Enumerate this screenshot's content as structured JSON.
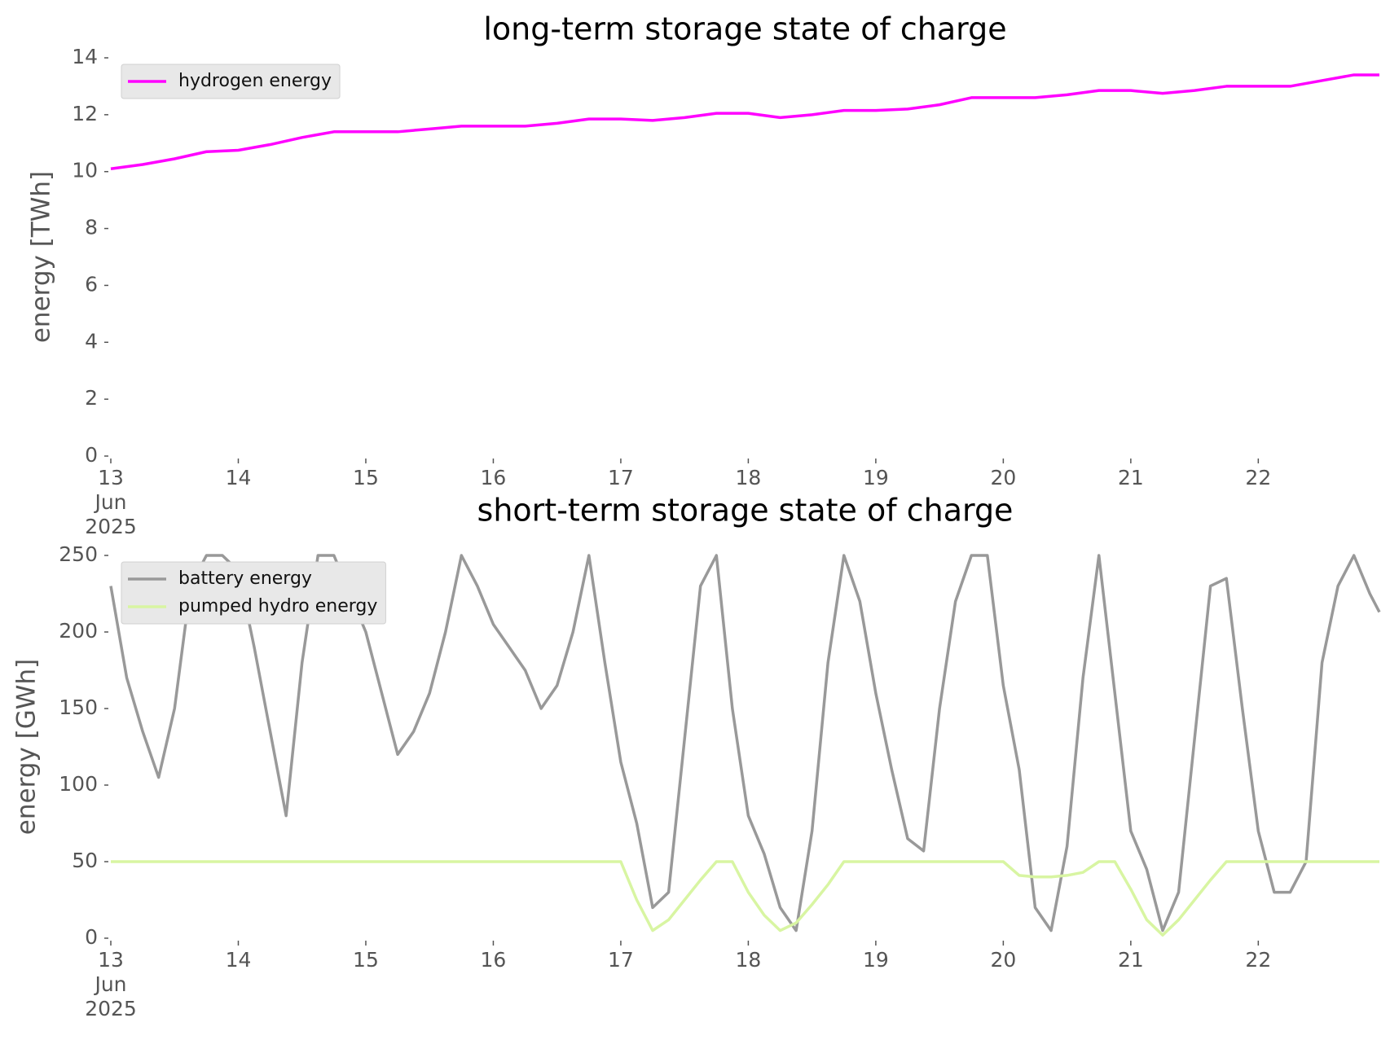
{
  "chart_data": [
    {
      "type": "line",
      "title": "long-term storage state of charge",
      "y_label": "energy [TWh]",
      "x": [
        13,
        13.25,
        13.5,
        13.75,
        14,
        14.25,
        14.5,
        14.75,
        15,
        15.25,
        15.5,
        15.75,
        16,
        16.25,
        16.5,
        16.75,
        17,
        17.25,
        17.5,
        17.75,
        18,
        18.25,
        18.5,
        18.75,
        19,
        19.25,
        19.5,
        19.75,
        20,
        20.25,
        20.5,
        20.75,
        21,
        21.25,
        21.5,
        21.75,
        22,
        22.25,
        22.5,
        22.75,
        22.95
      ],
      "series": [
        {
          "name": "hydrogen energy",
          "color": "#ff00ff",
          "values": [
            10.1,
            10.25,
            10.45,
            10.7,
            10.75,
            10.95,
            11.2,
            11.4,
            11.4,
            11.4,
            11.5,
            11.6,
            11.6,
            11.6,
            11.7,
            11.85,
            11.85,
            11.8,
            11.9,
            12.05,
            12.05,
            11.9,
            12.0,
            12.15,
            12.15,
            12.2,
            12.35,
            12.6,
            12.6,
            12.6,
            12.7,
            12.85,
            12.85,
            12.75,
            12.85,
            13.0,
            13.0,
            13.0,
            13.2,
            13.4,
            13.4
          ]
        }
      ],
      "xlim": [
        13,
        22.95
      ],
      "xticks": [
        {
          "value": 13,
          "label": "13\nJun\n2025"
        },
        14,
        15,
        16,
        17,
        18,
        19,
        20,
        21,
        22
      ],
      "ylim": [
        0,
        14
      ],
      "yticks": [
        0,
        2,
        4,
        6,
        8,
        10,
        12,
        14
      ],
      "legend": "upper left",
      "grid": false
    },
    {
      "type": "line",
      "title": "short-term storage state of charge",
      "y_label": "energy [GWh]",
      "x": [
        13,
        13.125,
        13.25,
        13.375,
        13.5,
        13.625,
        13.75,
        13.875,
        14,
        14.125,
        14.25,
        14.375,
        14.5,
        14.625,
        14.75,
        14.875,
        15,
        15.125,
        15.25,
        15.375,
        15.5,
        15.625,
        15.75,
        15.875,
        16,
        16.125,
        16.25,
        16.375,
        16.5,
        16.625,
        16.75,
        16.875,
        17,
        17.125,
        17.25,
        17.375,
        17.5,
        17.625,
        17.75,
        17.875,
        18,
        18.125,
        18.25,
        18.375,
        18.5,
        18.625,
        18.75,
        18.875,
        19,
        19.125,
        19.25,
        19.375,
        19.5,
        19.625,
        19.75,
        19.875,
        20,
        20.125,
        20.25,
        20.375,
        20.5,
        20.625,
        20.75,
        20.875,
        21,
        21.125,
        21.25,
        21.375,
        21.5,
        21.625,
        21.75,
        21.875,
        22,
        22.125,
        22.25,
        22.375,
        22.5,
        22.625,
        22.75,
        22.875,
        22.95
      ],
      "series": [
        {
          "name": "battery energy",
          "color": "#999999",
          "values": [
            230,
            170,
            135,
            105,
            150,
            230,
            250,
            250,
            240,
            190,
            135,
            80,
            180,
            250,
            250,
            225,
            200,
            160,
            120,
            135,
            160,
            200,
            250,
            230,
            205,
            190,
            175,
            150,
            165,
            200,
            250,
            180,
            115,
            75,
            20,
            30,
            130,
            230,
            250,
            150,
            80,
            55,
            20,
            5,
            70,
            180,
            250,
            220,
            160,
            110,
            65,
            57,
            150,
            220,
            250,
            250,
            165,
            110,
            20,
            5,
            60,
            170,
            250,
            160,
            70,
            45,
            5,
            30,
            130,
            230,
            235,
            150,
            70,
            30,
            30,
            50,
            180,
            230,
            250,
            225,
            213
          ]
        },
        {
          "name": "pumped hydro energy",
          "color": "#d8f5a2",
          "values": [
            50,
            50,
            50,
            50,
            50,
            50,
            50,
            50,
            50,
            50,
            50,
            50,
            50,
            50,
            50,
            50,
            50,
            50,
            50,
            50,
            50,
            50,
            50,
            50,
            50,
            50,
            50,
            50,
            50,
            50,
            50,
            50,
            50,
            25,
            5,
            12,
            25,
            38,
            50,
            50,
            30,
            15,
            5,
            10,
            22,
            35,
            50,
            50,
            50,
            50,
            50,
            50,
            50,
            50,
            50,
            50,
            50,
            41,
            40,
            40,
            41,
            43,
            50,
            50,
            32,
            12,
            2,
            12,
            25,
            38,
            50,
            50,
            50,
            50,
            50,
            50,
            50,
            50,
            50,
            50,
            50
          ]
        }
      ],
      "xlim": [
        13,
        22.95
      ],
      "xticks": [
        {
          "value": 13,
          "label": "13\nJun\n2025"
        },
        14,
        15,
        16,
        17,
        18,
        19,
        20,
        21,
        22
      ],
      "ylim": [
        0,
        250
      ],
      "yticks": [
        0,
        50,
        100,
        150,
        200,
        250
      ],
      "legend": "upper left",
      "grid": false
    }
  ]
}
